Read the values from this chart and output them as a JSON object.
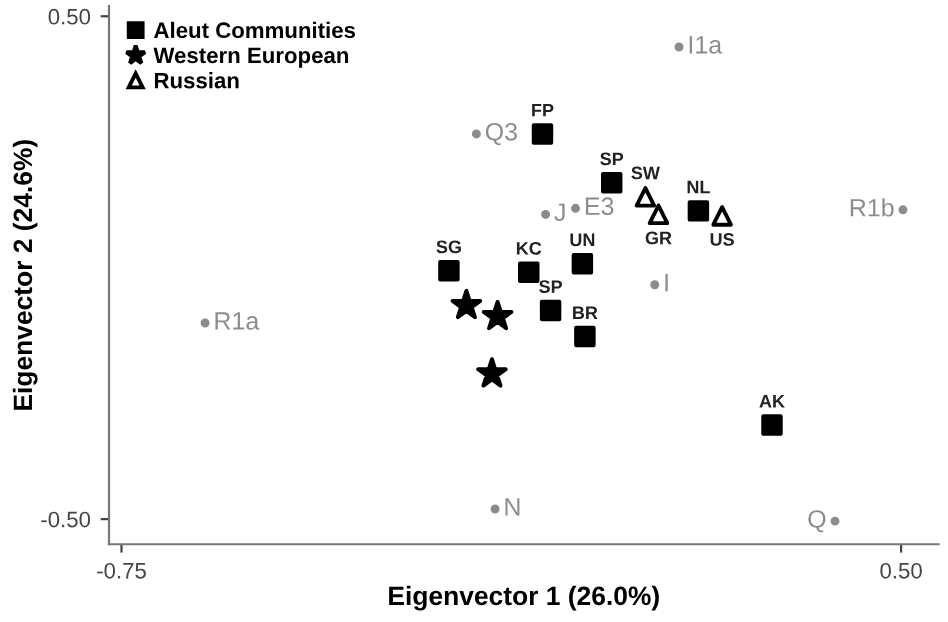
{
  "chart_data": {
    "type": "scatter",
    "xlabel": "Eigenvector 1 (26.0%)",
    "ylabel": "Eigenvector 2 (24.6%)",
    "xlim": [
      -0.77,
      0.56
    ],
    "ylim": [
      -0.55,
      0.52
    ],
    "xticks": [
      {
        "value": -0.75,
        "label": "-0.75"
      },
      {
        "value": 0.5,
        "label": "0.50"
      }
    ],
    "yticks": [
      {
        "value": 0.5,
        "label": "0.50"
      },
      {
        "value": -0.5,
        "label": "-0.50"
      }
    ],
    "grid": false,
    "legend": "top left",
    "series": [
      {
        "name": "Aleut Communities",
        "color": "#000000",
        "marker": "square",
        "x": [
          -0.075,
          0.036,
          0.175,
          -0.225,
          -0.097,
          -0.011,
          -0.062,
          -0.007,
          0.293
        ],
        "values": [
          0.266,
          0.169,
          0.113,
          -0.006,
          -0.009,
          0.008,
          -0.085,
          -0.137,
          -0.313
        ],
        "value_labels": [
          "FP",
          "SP",
          "NL",
          "SG",
          "KC",
          "UN",
          "SP",
          "BR",
          "AK"
        ]
      },
      {
        "name": "Western European",
        "color": "#000000",
        "marker": "star",
        "x": [
          -0.197,
          -0.147,
          -0.156
        ],
        "values": [
          -0.075,
          -0.097,
          -0.211
        ]
      },
      {
        "name": "Russian",
        "color": "#000000",
        "marker": "triangle",
        "x": [
          0.09,
          0.111,
          0.213
        ],
        "values": [
          0.141,
          0.106,
          0.103
        ],
        "value_labels": [
          "SW",
          "GR",
          "US"
        ]
      },
      {
        "color": "#8c8c8c",
        "marker": "circle",
        "x": [
          0.144,
          -0.181,
          -0.07,
          -0.022,
          0.105,
          0.503,
          -0.616,
          -0.151,
          0.394
        ],
        "values": [
          0.439,
          0.266,
          0.106,
          0.118,
          -0.034,
          0.115,
          -0.11,
          -0.48,
          -0.504
        ],
        "value_labels": [
          "I1a",
          "Q3",
          "J",
          "E3",
          "I",
          "R1b",
          "R1a",
          "N",
          "Q"
        ]
      }
    ]
  }
}
